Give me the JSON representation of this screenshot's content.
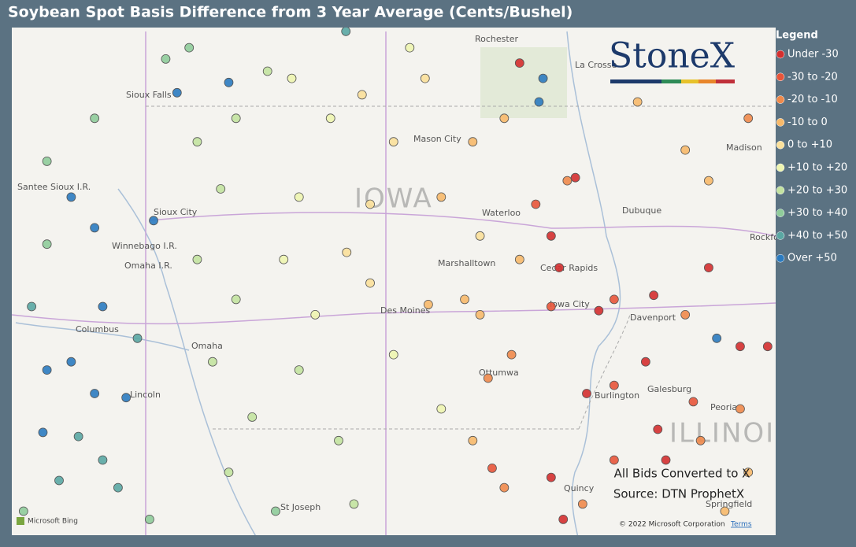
{
  "header": {
    "title": "Soybean Spot Basis Difference from 3 Year Average (Cents/Bushel)"
  },
  "legend": {
    "title": "Legend",
    "items": [
      {
        "label": "Under -30",
        "color": "#d42f2f"
      },
      {
        "label": "-30 to -20",
        "color": "#e8553a"
      },
      {
        "label": "-20 to -10",
        "color": "#f08a4b"
      },
      {
        "label": "-10 to 0",
        "color": "#f7b96a"
      },
      {
        "label": "0 to +10",
        "color": "#fbe09a"
      },
      {
        "label": "+10 to +20",
        "color": "#eef5b0"
      },
      {
        "label": "+20 to +30",
        "color": "#c3e3a0"
      },
      {
        "label": "+30 to +40",
        "color": "#8fcc9a"
      },
      {
        "label": "+40 to +50",
        "color": "#5aa7a3"
      },
      {
        "label": "Over +50",
        "color": "#2b7bc0"
      }
    ]
  },
  "logo": "StoneX",
  "notes": [
    "All Bids Converted to X",
    "Source: DTN ProphetX"
  ],
  "attribution": {
    "provider": "Microsoft Bing",
    "copyright": "© 2022 Microsoft Corporation",
    "terms": "Terms"
  },
  "map": {
    "labels": [
      "Rochester",
      "La Crosse",
      "Mason City",
      "IOWA",
      "Waterloo",
      "Dubuque",
      "Madison",
      "Sioux City",
      "Winnebago I.R.",
      "Omaha I.R.",
      "Santee Sioux I.R.",
      "Columbus",
      "Omaha",
      "Lincoln",
      "Des Moines",
      "Marshalltown",
      "Cedar Rapids",
      "Iowa City",
      "Davenport",
      "Ottumwa",
      "Burlington",
      "Galesburg",
      "Peoria",
      "ILLINOIS",
      "Quincy",
      "Springfield",
      "St Joseph",
      "Rockford",
      "Sioux Falls"
    ],
    "points": [
      [
        -97.7,
        41.03,
        9
      ],
      [
        -97.4,
        41.11,
        9
      ],
      [
        -97.11,
        40.8,
        9
      ],
      [
        -96.72,
        40.76,
        9
      ],
      [
        -97.75,
        40.42,
        9
      ],
      [
        -97.31,
        40.38,
        8
      ],
      [
        -97.01,
        40.15,
        8
      ],
      [
        -97.55,
        39.95,
        8
      ],
      [
        -96.82,
        39.88,
        8
      ],
      [
        -97.89,
        41.65,
        8
      ],
      [
        -97.01,
        41.65,
        9
      ],
      [
        -96.58,
        41.34,
        8
      ],
      [
        -97.11,
        42.42,
        9
      ],
      [
        -96.38,
        42.49,
        9
      ],
      [
        -97.4,
        42.72,
        9
      ],
      [
        -96.09,
        43.74,
        9
      ],
      [
        -95.45,
        43.84,
        9
      ],
      [
        -96.23,
        44.07,
        7
      ],
      [
        -95.94,
        44.18,
        7
      ],
      [
        -97.11,
        43.49,
        7
      ],
      [
        -97.7,
        43.07,
        7
      ],
      [
        -97.7,
        42.26,
        7
      ],
      [
        -97.99,
        39.65,
        7
      ],
      [
        -96.43,
        39.57,
        7
      ],
      [
        -95.84,
        43.26,
        6
      ],
      [
        -95.36,
        43.49,
        6
      ],
      [
        -94.97,
        43.95,
        6
      ],
      [
        -95.55,
        42.8,
        6
      ],
      [
        -95.84,
        42.11,
        6
      ],
      [
        -95.36,
        41.72,
        6
      ],
      [
        -95.65,
        41.11,
        6
      ],
      [
        -95.16,
        40.57,
        6
      ],
      [
        -95.45,
        40.03,
        6
      ],
      [
        -94.87,
        39.65,
        7
      ],
      [
        -94.67,
        43.88,
        5
      ],
      [
        -94.19,
        43.49,
        5
      ],
      [
        -94.58,
        42.72,
        5
      ],
      [
        -94.77,
        42.11,
        5
      ],
      [
        -94.38,
        41.57,
        5
      ],
      [
        -94.58,
        41.03,
        6
      ],
      [
        -94.09,
        40.34,
        6
      ],
      [
        -93.9,
        39.72,
        6
      ],
      [
        -93.8,
        43.72,
        4
      ],
      [
        -93.41,
        43.26,
        4
      ],
      [
        -93.7,
        42.65,
        4
      ],
      [
        -93.99,
        42.18,
        4
      ],
      [
        -93.7,
        41.88,
        4
      ],
      [
        -93.41,
        41.18,
        5
      ],
      [
        -93.02,
        43.88,
        4
      ],
      [
        -92.98,
        41.67,
        3
      ],
      [
        -92.82,
        42.72,
        3
      ],
      [
        -92.43,
        43.26,
        3
      ],
      [
        -92.34,
        42.34,
        4
      ],
      [
        -92.53,
        41.72,
        3
      ],
      [
        -92.82,
        40.65,
        5
      ],
      [
        -92.24,
        40.95,
        2
      ],
      [
        -92.43,
        40.34,
        3
      ],
      [
        -92.04,
        39.88,
        2
      ],
      [
        -91.95,
        41.18,
        2
      ],
      [
        -92.04,
        43.49,
        3
      ],
      [
        -91.85,
        44.03,
        0
      ],
      [
        -91.56,
        43.88,
        9
      ],
      [
        -91.61,
        43.65,
        9
      ],
      [
        -91.65,
        42.65,
        1
      ],
      [
        -91.46,
        42.34,
        0
      ],
      [
        -91.26,
        42.88,
        2
      ],
      [
        -91.16,
        42.91,
        0
      ],
      [
        -91.36,
        42.03,
        0
      ],
      [
        -91.85,
        42.11,
        3
      ],
      [
        -91.46,
        41.65,
        1
      ],
      [
        -90.87,
        41.61,
        0
      ],
      [
        -90.68,
        41.72,
        1
      ],
      [
        -90.19,
        41.76,
        0
      ],
      [
        -89.51,
        42.03,
        0
      ],
      [
        -89.8,
        41.57,
        2
      ],
      [
        -89.41,
        41.34,
        9
      ],
      [
        -89.12,
        41.26,
        0
      ],
      [
        -88.78,
        41.26,
        0
      ],
      [
        -90.29,
        41.11,
        0
      ],
      [
        -90.68,
        40.88,
        1
      ],
      [
        -91.02,
        40.8,
        0
      ],
      [
        -90.14,
        40.45,
        0
      ],
      [
        -89.7,
        40.72,
        1
      ],
      [
        -89.12,
        40.65,
        2
      ],
      [
        -90.04,
        40.15,
        0
      ],
      [
        -90.68,
        40.15,
        1
      ],
      [
        -91.46,
        39.98,
        0
      ],
      [
        -91.07,
        39.72,
        2
      ],
      [
        -91.31,
        39.57,
        0
      ],
      [
        -89.61,
        40.34,
        2
      ],
      [
        -89.02,
        40.03,
        3
      ],
      [
        -89.31,
        39.65,
        3
      ],
      [
        -92.19,
        40.07,
        1
      ],
      [
        -92.34,
        41.57,
        3
      ],
      [
        -89.51,
        42.88,
        3
      ],
      [
        -89.02,
        43.49,
        2
      ],
      [
        -90.39,
        43.65,
        3
      ],
      [
        -89.8,
        43.18,
        3
      ],
      [
        -93.21,
        44.18,
        5
      ],
      [
        -94.0,
        44.34,
        8
      ]
    ]
  }
}
